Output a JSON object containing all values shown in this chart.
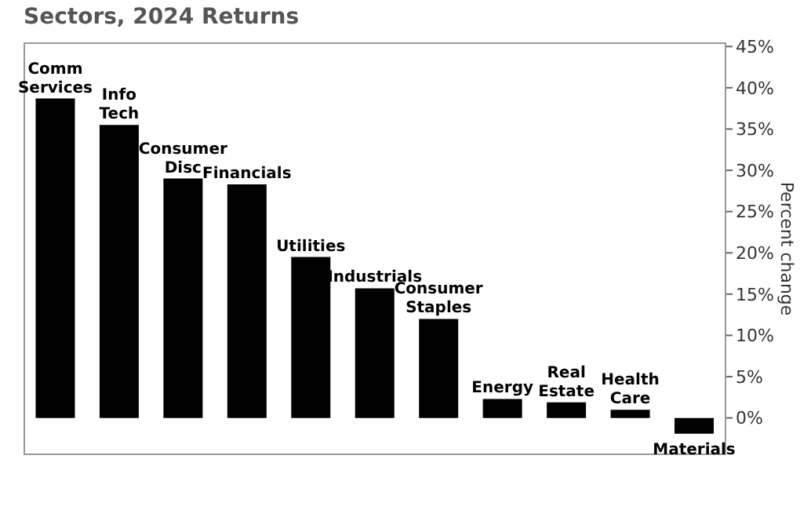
{
  "chart_data": {
    "type": "bar",
    "title": "Sectors, 2024 Returns",
    "ylabel": "Percent change",
    "categories": [
      "Comm Services",
      "Info Tech",
      "Consumer Disc",
      "Financials",
      "Utilities",
      "Industrials",
      "Consumer Staples",
      "Energy",
      "Real Estate",
      "Health Care",
      "Materials"
    ],
    "values": [
      38.7,
      35.5,
      29.0,
      28.3,
      19.5,
      15.7,
      12.0,
      2.3,
      1.9,
      1.0,
      -1.9
    ],
    "color": "#000000",
    "ylim": [
      -4.5,
      45.5
    ],
    "yticks": [
      {
        "value": 0,
        "label": "0%"
      },
      {
        "value": 5,
        "label": "5%"
      },
      {
        "value": 10,
        "label": "10%"
      },
      {
        "value": 15,
        "label": "15%"
      },
      {
        "value": 20,
        "label": "20%"
      },
      {
        "value": 25,
        "label": "25%"
      },
      {
        "value": 30,
        "label": "30%"
      },
      {
        "value": 35,
        "label": "35%"
      },
      {
        "value": 40,
        "label": "40%"
      },
      {
        "value": 45,
        "label": "45%"
      }
    ],
    "tick_labels": "y",
    "grid": false
  }
}
